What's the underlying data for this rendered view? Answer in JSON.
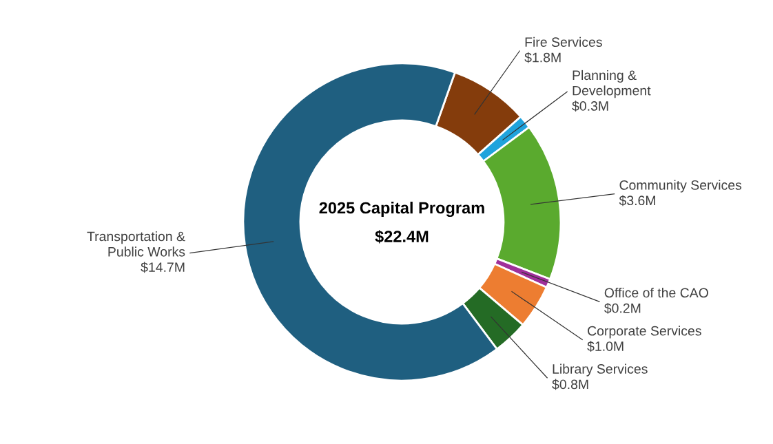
{
  "chart_data": {
    "type": "donut",
    "categories": [
      "Fire Services",
      "Planning & Development",
      "Community Services",
      "Office of the CAO",
      "Corporate Services",
      "Library Services",
      "Transportation & Public Works"
    ],
    "values": [
      1.8,
      0.3,
      3.6,
      0.2,
      1.0,
      0.8,
      14.7
    ],
    "value_labels": [
      "$1.8M",
      "$0.3M",
      "$3.6M",
      "$0.2M",
      "$1.0M",
      "$0.8M",
      "$14.7M"
    ],
    "colors": [
      "#843c0c",
      "#1fa3dc",
      "#5aaa2e",
      "#a0309a",
      "#ed7d31",
      "#246b25",
      "#1f5f80"
    ],
    "annotations": [
      "2025 Capital Program",
      "$22.4M"
    ],
    "legend": false
  }
}
